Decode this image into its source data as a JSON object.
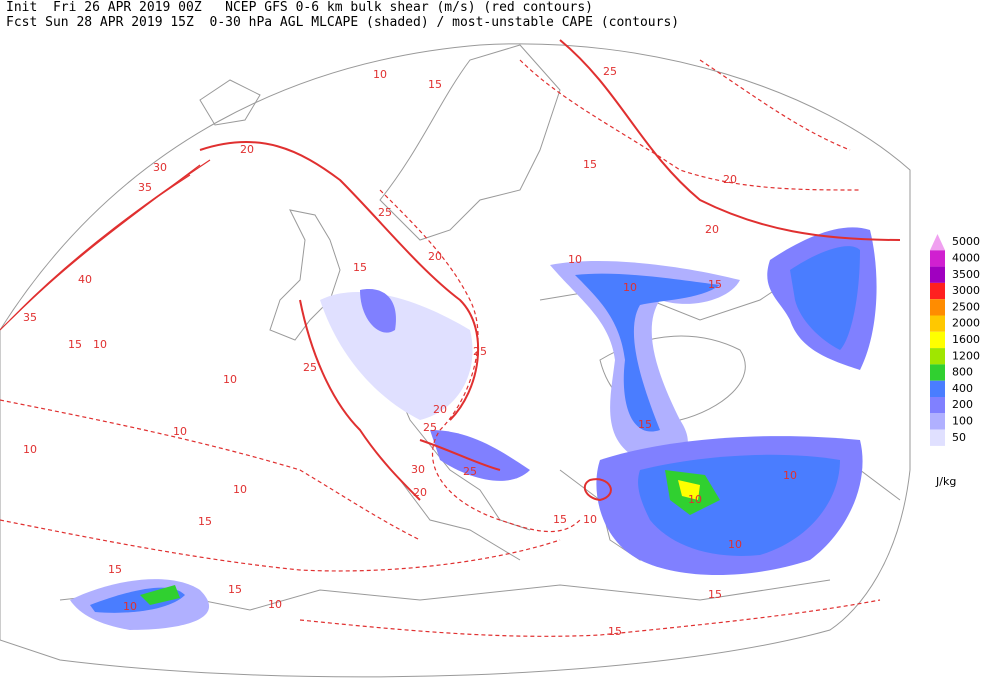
{
  "header": {
    "line1": "Init  Fri 26 APR 2019 00Z   NCEP GFS 0-6 km bulk shear (m/s) (red contours)",
    "line2": "Fcst Sun 28 APR 2019 15Z  0-30 hPa AGL MLCAPE (shaded) / most-unstable CAPE (contours)"
  },
  "legend": {
    "unit": "J/kg",
    "items": [
      {
        "value": 5000,
        "color": "#f0a0f0"
      },
      {
        "value": 4000,
        "color": "#d020d0"
      },
      {
        "value": 3500,
        "color": "#a000c0"
      },
      {
        "value": 3000,
        "color": "#ff2020"
      },
      {
        "value": 2500,
        "color": "#ff8c00"
      },
      {
        "value": 2000,
        "color": "#ffc800"
      },
      {
        "value": 1600,
        "color": "#ffff00"
      },
      {
        "value": 1200,
        "color": "#a0e600"
      },
      {
        "value": 800,
        "color": "#30d030"
      },
      {
        "value": 400,
        "color": "#4a7dff"
      },
      {
        "value": 200,
        "color": "#8080ff"
      },
      {
        "value": 100,
        "color": "#b0b0ff"
      },
      {
        "value": 50,
        "color": "#e0e0ff"
      }
    ]
  },
  "contour_labels": [
    10,
    15,
    20,
    30,
    35,
    40,
    35,
    15,
    10,
    10,
    25,
    20,
    15,
    25,
    25,
    20,
    25,
    30,
    25,
    20,
    10,
    15,
    15,
    10,
    15,
    10,
    10,
    10,
    15,
    10,
    10,
    20,
    20,
    25,
    15,
    10,
    10,
    15,
    15,
    15,
    15,
    10,
    10
  ]
}
